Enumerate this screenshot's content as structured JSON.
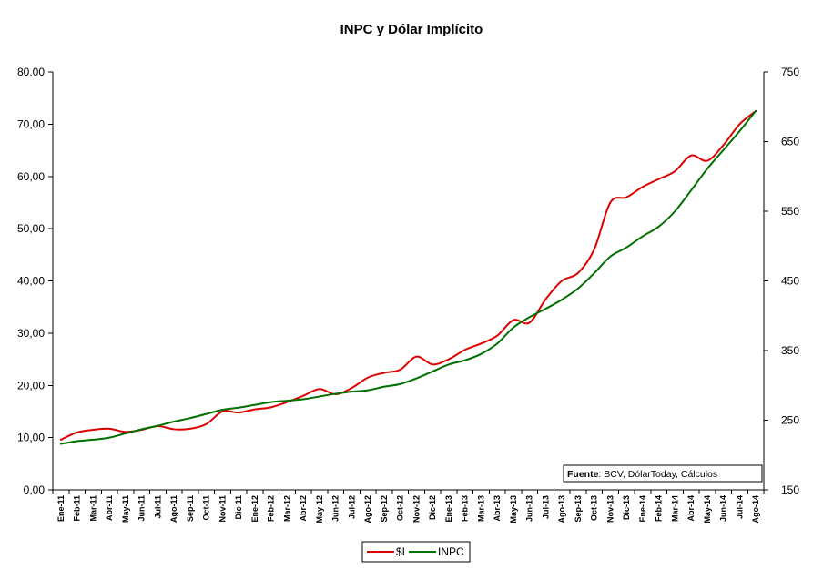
{
  "chart_data": {
    "type": "line",
    "title": "INPC y Dólar Implícito",
    "categories": [
      "Ene-11",
      "Feb-11",
      "Mar-11",
      "Abr-11",
      "May-11",
      "Jun-11",
      "Jul-11",
      "Ago-11",
      "Sep-11",
      "Oct-11",
      "Nov-11",
      "Dic-11",
      "Ene-12",
      "Feb-12",
      "Mar-12",
      "Abr-12",
      "May-12",
      "Jun-12",
      "Jul-12",
      "Ago-12",
      "Sep-12",
      "Oct-12",
      "Nov-12",
      "Dic-12",
      "Ene-13",
      "Feb-13",
      "Mar-13",
      "Abr-13",
      "May-13",
      "Jun-13",
      "Jul-13",
      "Ago-13",
      "Sep-13",
      "Oct-13",
      "Nov-13",
      "Dic-13",
      "Ene-14",
      "Feb-14",
      "Mar-14",
      "Abr-14",
      "May-14",
      "Jun-14",
      "Jul-14",
      "Ago-14"
    ],
    "y_left": {
      "lim": [
        0,
        80
      ],
      "step": 10,
      "tick_labels": [
        "0,00",
        "10,00",
        "20,00",
        "30,00",
        "40,00",
        "50,00",
        "60,00",
        "70,00",
        "80,00"
      ]
    },
    "y_right": {
      "lim": [
        150,
        750
      ],
      "step": 100,
      "tick_labels": [
        "150",
        "250",
        "350",
        "450",
        "550",
        "650",
        "750"
      ]
    },
    "series": [
      {
        "name": "$I",
        "axis": "left",
        "color": "#dd0000",
        "values": [
          9.6,
          11.0,
          11.5,
          11.7,
          11.1,
          11.5,
          12.2,
          11.6,
          11.7,
          12.6,
          15.0,
          14.8,
          15.4,
          15.8,
          16.8,
          18.0,
          19.3,
          18.3,
          19.5,
          21.5,
          22.4,
          23.0,
          25.5,
          24.0,
          25.0,
          26.8,
          28.0,
          29.5,
          32.5,
          32.0,
          36.5,
          40.0,
          41.5,
          46.0,
          55.0,
          56.0,
          58.0,
          59.5,
          61.0,
          64.0,
          63.0,
          66.0,
          70.0,
          72.5
        ]
      },
      {
        "name": "INPC",
        "axis": "right",
        "color": "#007000",
        "values": [
          216,
          220,
          222,
          225,
          231,
          237,
          242,
          248,
          253,
          259,
          265,
          268,
          272,
          276,
          278,
          280,
          284,
          288,
          291,
          293,
          298,
          302,
          310,
          320,
          330,
          336,
          345,
          360,
          383,
          398,
          410,
          423,
          439,
          461,
          485,
          498,
          514,
          528,
          550,
          580,
          611,
          638,
          665,
          694
        ]
      }
    ],
    "legend": {
      "position": "bottom-center",
      "entries": [
        "$I",
        "INPC"
      ]
    },
    "source_note": {
      "label": "Fuente",
      "text": ": BCV, DólarToday, Cálculos"
    },
    "grid": false
  }
}
